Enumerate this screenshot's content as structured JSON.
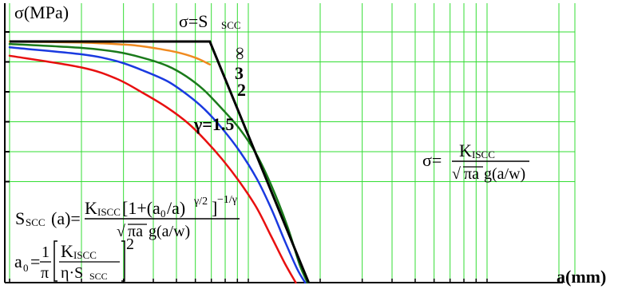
{
  "chart_data": {
    "type": "line",
    "x_scale": "log",
    "grid": true,
    "grid_color": "#33dd33",
    "axis_color": "#000000",
    "y_label": "σ(MPa)",
    "x_label": "a(mm)",
    "x_ticks": [
      1,
      2,
      3,
      4,
      5,
      6,
      7,
      8,
      9,
      10,
      20,
      30,
      40,
      50,
      60,
      70,
      80,
      90,
      100,
      200
    ],
    "y_grid_levels": [
      1,
      2,
      3,
      4,
      5,
      6
    ],
    "series": [
      {
        "name": "∞",
        "color": "#f08a20",
        "points": [
          [
            1,
            0.1375
          ],
          [
            2,
            0.141
          ],
          [
            3,
            0.148
          ],
          [
            3.5,
            0.153
          ],
          [
            4,
            0.16
          ],
          [
            5,
            0.175
          ],
          [
            6,
            0.195
          ],
          [
            6.9,
            0.219
          ]
        ]
      },
      {
        "name": "3",
        "color": "#1a7a1a",
        "points": [
          [
            1,
            0.146
          ],
          [
            2,
            0.16
          ],
          [
            2.8,
            0.174
          ],
          [
            3.6,
            0.195
          ],
          [
            4.6,
            0.225
          ],
          [
            5.5,
            0.262
          ],
          [
            6.5,
            0.31
          ],
          [
            7.8,
            0.38
          ],
          [
            9.2,
            0.45
          ],
          [
            10.8,
            0.54
          ],
          [
            12.6,
            0.66
          ],
          [
            14.6,
            0.8
          ],
          [
            16.4,
            0.935
          ],
          [
            17.7,
            1.0
          ]
        ]
      },
      {
        "name": "2",
        "color": "#1a3ae0",
        "points": [
          [
            1,
            0.158
          ],
          [
            2,
            0.183
          ],
          [
            2.8,
            0.207
          ],
          [
            3.6,
            0.24
          ],
          [
            4.6,
            0.28
          ],
          [
            5.6,
            0.33
          ],
          [
            6.6,
            0.382
          ],
          [
            7.8,
            0.45
          ],
          [
            9.2,
            0.53
          ],
          [
            10.8,
            0.625
          ],
          [
            12.4,
            0.73
          ],
          [
            14.2,
            0.85
          ],
          [
            16,
            0.95
          ],
          [
            17.3,
            1.0
          ]
        ]
      },
      {
        "name": "γ=1.5",
        "color": "#e81010",
        "points": [
          [
            1,
            0.188
          ],
          [
            2,
            0.23
          ],
          [
            2.8,
            0.27
          ],
          [
            3.6,
            0.32
          ],
          [
            4.6,
            0.375
          ],
          [
            5.6,
            0.43
          ],
          [
            6.6,
            0.49
          ],
          [
            7.8,
            0.56
          ],
          [
            9.2,
            0.64
          ],
          [
            10.8,
            0.73
          ],
          [
            12.4,
            0.83
          ],
          [
            14.2,
            0.93
          ],
          [
            15.8,
            1.0
          ]
        ]
      }
    ],
    "envelope": {
      "name": "σ=Sscc",
      "color": "#000000",
      "points": [
        [
          1,
          0.137
        ],
        [
          6.9,
          0.137
        ],
        [
          17.9,
          1.0
        ]
      ]
    },
    "annotations": {
      "plateau": {
        "prefix": "σ=S",
        "sub": "SCC"
      },
      "infinity": "∞",
      "three": "3",
      "two": "2",
      "gamma": "γ=1.5",
      "lefm_sigma": "σ=",
      "lefm_num": "K",
      "lefm_num_sub": "ISCC",
      "lefm_sqrt": "√",
      "lefm_pia": "πa",
      "lefm_g": "g(a/w)",
      "sscc_lhs": "S",
      "sscc_lhs_sub": "SCC",
      "sscc_lhs_tail": "(a)=",
      "sscc_num_k": "K",
      "sscc_num_k_sub": "ISCC",
      "sscc_num_rest": "[1+(a",
      "sscc_num_a0sub": "0",
      "sscc_num_rest2": "/a)",
      "sscc_num_exp1": "γ/2",
      "sscc_num_close": "]",
      "sscc_num_exp2": "−1/γ",
      "sscc_den_sqrt": "√",
      "sscc_den_pia": "πa",
      "sscc_den_g": "g(a/w)",
      "a0_lhs": "a",
      "a0_lhs_sub": "0",
      "a0_eq": "=",
      "a0_one": "1",
      "a0_pi": "π",
      "a0_k": "K",
      "a0_k_sub": "ISCC",
      "a0_eta": "η·S",
      "a0_eta_sub": "SCC",
      "a0_sq": "2"
    }
  }
}
